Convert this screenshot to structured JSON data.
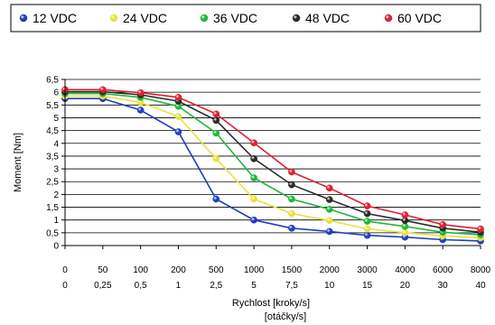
{
  "chart_data": {
    "type": "line",
    "title": "",
    "xlabel_line1": "Rychlost [kroky/s]",
    "xlabel_line2": "[otáčky/s]",
    "ylabel": "Moment [Nm]",
    "ylim": [
      0,
      6.5
    ],
    "y_ticks": [
      "0",
      "0,5",
      "1",
      "1,5",
      "2",
      "2,5",
      "3",
      "3,5",
      "4",
      "4,5",
      "5",
      "5,5",
      "6",
      "6,5"
    ],
    "categories": [
      "0",
      "50",
      "100",
      "200",
      "500",
      "1000",
      "1500",
      "2000",
      "3000",
      "4000",
      "6000",
      "8000"
    ],
    "categories_secondary": [
      "0",
      "0,25",
      "0,5",
      "1",
      "2,5",
      "5",
      "7,5",
      "10",
      "15",
      "20",
      "30",
      "40"
    ],
    "grid": "horizontal",
    "legend_position": "top",
    "series": [
      {
        "name": "12 VDC",
        "color": "#1f3fbf",
        "values": [
          5.75,
          5.75,
          5.3,
          4.45,
          1.82,
          1.0,
          0.68,
          0.55,
          0.4,
          0.33,
          0.23,
          0.18
        ]
      },
      {
        "name": "24 VDC",
        "color": "#e8e23a",
        "values": [
          5.85,
          5.85,
          5.6,
          5.05,
          3.4,
          1.82,
          1.25,
          0.98,
          0.65,
          0.5,
          0.38,
          0.3
        ]
      },
      {
        "name": "36 VDC",
        "color": "#1fb83a",
        "values": [
          5.95,
          5.95,
          5.8,
          5.45,
          4.4,
          2.65,
          1.82,
          1.42,
          0.95,
          0.75,
          0.52,
          0.42
        ]
      },
      {
        "name": "48 VDC",
        "color": "#2a2a2a",
        "values": [
          6.02,
          6.02,
          5.9,
          5.65,
          4.9,
          3.4,
          2.38,
          1.8,
          1.25,
          0.98,
          0.68,
          0.52
        ]
      },
      {
        "name": "60 VDC",
        "color": "#dd2030",
        "values": [
          6.1,
          6.1,
          5.98,
          5.8,
          5.15,
          4.02,
          2.88,
          2.25,
          1.55,
          1.2,
          0.82,
          0.65
        ]
      }
    ]
  }
}
